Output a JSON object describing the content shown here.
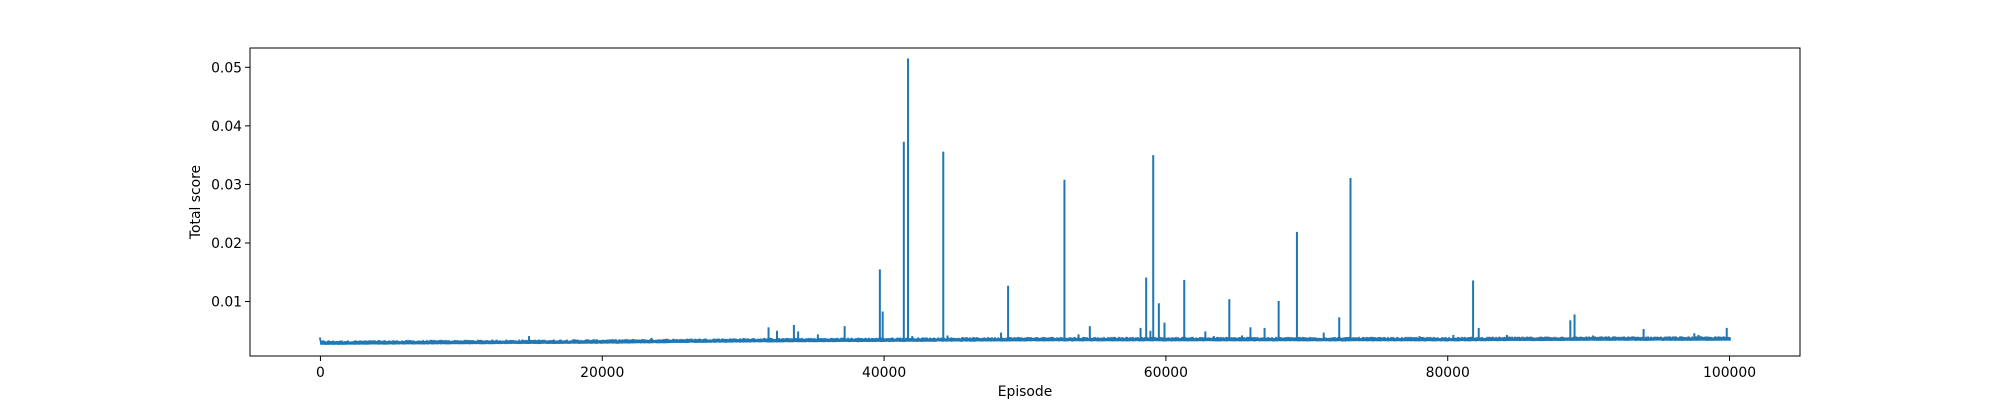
{
  "chart_data": {
    "type": "line",
    "title": "",
    "xlabel": "Episode",
    "ylabel": "Total score",
    "xlim": [
      -5000,
      105000
    ],
    "ylim": [
      0.0007,
      0.0533
    ],
    "x_ticks": [
      0,
      20000,
      40000,
      60000,
      80000,
      100000
    ],
    "x_tick_labels": [
      "0",
      "20000",
      "40000",
      "60000",
      "80000",
      "100000"
    ],
    "y_ticks": [
      0.01,
      0.02,
      0.03,
      0.04,
      0.05
    ],
    "y_tick_labels": [
      "0.01",
      "0.02",
      "0.03",
      "0.04",
      "0.05"
    ],
    "grid": false,
    "series": [
      {
        "color": "#1f77b4",
        "baseline": [
          [
            0,
            0.0029
          ],
          [
            10000,
            0.003
          ],
          [
            20000,
            0.0031
          ],
          [
            30000,
            0.0033
          ],
          [
            40000,
            0.0034
          ],
          [
            50000,
            0.0035
          ],
          [
            60000,
            0.0035
          ],
          [
            70000,
            0.0035
          ],
          [
            80000,
            0.0035
          ],
          [
            90000,
            0.0036
          ],
          [
            100000,
            0.0036
          ]
        ],
        "spikes": [
          [
            14800,
            0.0041
          ],
          [
            23500,
            0.0038
          ],
          [
            31800,
            0.0056
          ],
          [
            32400,
            0.005
          ],
          [
            33600,
            0.006
          ],
          [
            33900,
            0.0049
          ],
          [
            35300,
            0.0044
          ],
          [
            37200,
            0.0058
          ],
          [
            39700,
            0.0155
          ],
          [
            39900,
            0.0083
          ],
          [
            41400,
            0.0373
          ],
          [
            41700,
            0.0515
          ],
          [
            42000,
            0.0041
          ],
          [
            44200,
            0.0356
          ],
          [
            44500,
            0.0042
          ],
          [
            48300,
            0.0047
          ],
          [
            48800,
            0.0127
          ],
          [
            52800,
            0.0308
          ],
          [
            53800,
            0.0044
          ],
          [
            54600,
            0.0058
          ],
          [
            58200,
            0.0055
          ],
          [
            58600,
            0.0141
          ],
          [
            58900,
            0.005
          ],
          [
            59100,
            0.035
          ],
          [
            59500,
            0.0097
          ],
          [
            59900,
            0.0064
          ],
          [
            61300,
            0.0137
          ],
          [
            62800,
            0.0049
          ],
          [
            63400,
            0.0041
          ],
          [
            64500,
            0.0104
          ],
          [
            65400,
            0.0042
          ],
          [
            66000,
            0.0056
          ],
          [
            67000,
            0.0055
          ],
          [
            68000,
            0.0101
          ],
          [
            69300,
            0.0219
          ],
          [
            71200,
            0.0047
          ],
          [
            72300,
            0.0073
          ],
          [
            73100,
            0.0311
          ],
          [
            74000,
            0.0039
          ],
          [
            78000,
            0.0041
          ],
          [
            80400,
            0.0043
          ],
          [
            81800,
            0.0136
          ],
          [
            82200,
            0.0055
          ],
          [
            84200,
            0.0043
          ],
          [
            87000,
            0.004
          ],
          [
            88700,
            0.0068
          ],
          [
            89000,
            0.0078
          ],
          [
            90300,
            0.0042
          ],
          [
            93900,
            0.0053
          ],
          [
            97500,
            0.0046
          ],
          [
            97800,
            0.0043
          ],
          [
            99800,
            0.0055
          ]
        ]
      }
    ]
  }
}
